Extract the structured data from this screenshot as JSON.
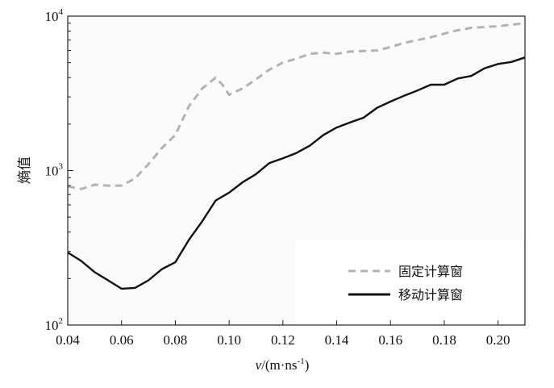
{
  "chart_data": {
    "type": "line",
    "xlabel": "v/(m·ns⁻¹)",
    "ylabel": "熵值",
    "xlim": [
      0.04,
      0.21
    ],
    "ylim": [
      100,
      10000
    ],
    "yscale": "log",
    "grid": false,
    "legend_position": "bottom-right",
    "x_ticks": [
      0.04,
      0.06,
      0.08,
      0.1,
      0.12,
      0.14,
      0.16,
      0.18,
      0.2
    ],
    "x_tick_labels": [
      "0.04",
      "0.06",
      "0.08",
      "0.10",
      "0.12",
      "0.14",
      "0.16",
      "0.18",
      "0.20"
    ],
    "y_ticks": [
      {
        "value": 100,
        "base": "10",
        "exp": "2"
      },
      {
        "value": 1000,
        "base": "10",
        "exp": "3"
      },
      {
        "value": 10000,
        "base": "10",
        "exp": "4"
      }
    ],
    "series": [
      {
        "name": "固定计算窗",
        "color": "#b3b3b3",
        "style": "dashed",
        "x": [
          0.04,
          0.045,
          0.05,
          0.055,
          0.06,
          0.065,
          0.07,
          0.075,
          0.08,
          0.085,
          0.09,
          0.095,
          0.0975,
          0.1,
          0.105,
          0.11,
          0.115,
          0.12,
          0.125,
          0.13,
          0.135,
          0.14,
          0.145,
          0.15,
          0.155,
          0.16,
          0.165,
          0.17,
          0.175,
          0.18,
          0.185,
          0.19,
          0.195,
          0.2,
          0.205,
          0.21
        ],
        "y": [
          790,
          760,
          810,
          800,
          800,
          890,
          1100,
          1400,
          1700,
          2600,
          3400,
          4000,
          3600,
          3100,
          3400,
          3900,
          4500,
          5000,
          5300,
          5700,
          5800,
          5700,
          5900,
          5950,
          6000,
          6300,
          6700,
          7000,
          7300,
          7700,
          8100,
          8400,
          8500,
          8600,
          8800,
          9000
        ]
      },
      {
        "name": "移动计算窗",
        "color": "#111111",
        "style": "solid",
        "x": [
          0.04,
          0.045,
          0.05,
          0.055,
          0.06,
          0.065,
          0.07,
          0.075,
          0.08,
          0.085,
          0.09,
          0.095,
          0.1,
          0.105,
          0.11,
          0.115,
          0.12,
          0.125,
          0.13,
          0.135,
          0.14,
          0.145,
          0.15,
          0.155,
          0.16,
          0.165,
          0.17,
          0.175,
          0.18,
          0.185,
          0.19,
          0.195,
          0.2,
          0.205,
          0.21
        ],
        "y": [
          295,
          260,
          220,
          195,
          172,
          174,
          195,
          230,
          255,
          355,
          470,
          640,
          720,
          840,
          950,
          1120,
          1200,
          1300,
          1450,
          1700,
          1900,
          2050,
          2200,
          2550,
          2800,
          3050,
          3300,
          3600,
          3600,
          3950,
          4100,
          4600,
          4900,
          5050,
          5400
        ]
      }
    ]
  }
}
